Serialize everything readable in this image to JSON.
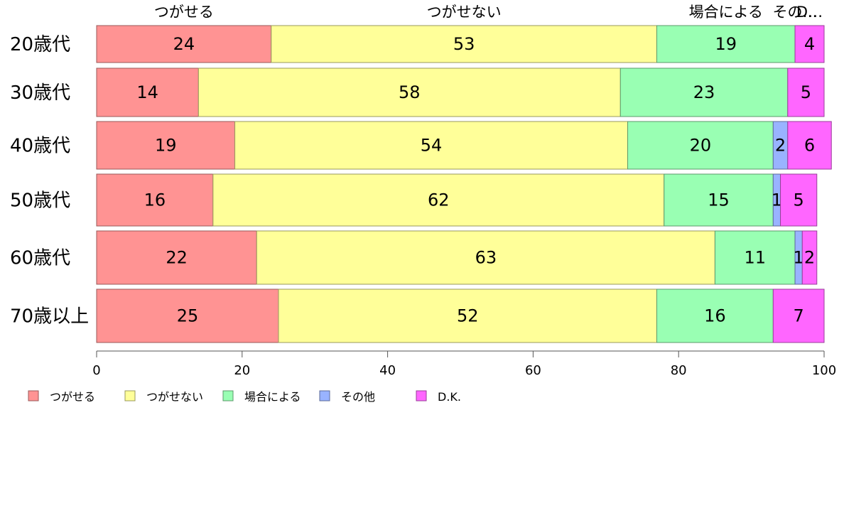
{
  "chart_data": {
    "type": "bar",
    "orientation": "horizontal",
    "stacked": true,
    "categories": [
      "20歳代",
      "30歳代",
      "40歳代",
      "50歳代",
      "60歳代",
      "70歳以上"
    ],
    "series": [
      {
        "name": "つがせる",
        "color": "#FF9393",
        "values": [
          24,
          14,
          19,
          16,
          22,
          25
        ]
      },
      {
        "name": "つがせない",
        "color": "#FFFF99",
        "values": [
          53,
          58,
          54,
          62,
          63,
          52
        ]
      },
      {
        "name": "場合による",
        "color": "#99FFB3",
        "values": [
          19,
          23,
          20,
          15,
          11,
          16
        ]
      },
      {
        "name": "その他",
        "color": "#99B3FF",
        "values": [
          0,
          0,
          2,
          1,
          1,
          0
        ]
      },
      {
        "name": "D.K.",
        "color": "#FF66FF",
        "values": [
          4,
          5,
          6,
          5,
          2,
          7
        ]
      }
    ],
    "top_labels": [
      "つがせる",
      "つがせない",
      "場合による",
      "その…",
      "D…"
    ],
    "x_ticks": [
      "0",
      "20",
      "40",
      "60",
      "80",
      "100"
    ],
    "xlim": [
      0,
      100
    ],
    "legend_position": "bottom-left",
    "grid": false
  }
}
